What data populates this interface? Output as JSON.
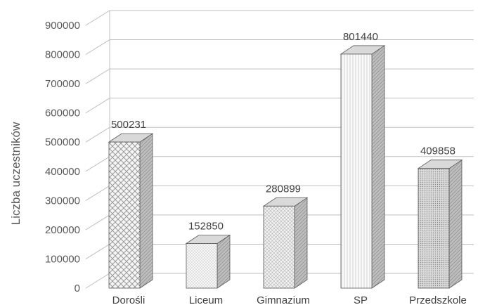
{
  "chart_data": {
    "type": "bar",
    "style": "3d-column",
    "title": "",
    "xlabel": "",
    "ylabel": "Liczba uczestników",
    "ylim": [
      0,
      900000
    ],
    "yticks": [
      "0",
      "100000",
      "200000",
      "300000",
      "400000",
      "500000",
      "600000",
      "700000",
      "800000",
      "900000"
    ],
    "grid": true,
    "legend": "none",
    "categories": [
      "Dorośli",
      "Liceum",
      "Gimnazium",
      "SP",
      "Przedszkole"
    ],
    "values": [
      500231,
      152850,
      280899,
      801440,
      409858
    ],
    "data_labels": [
      "500231",
      "152850",
      "280899",
      "801440",
      "409858"
    ],
    "colors": {
      "gridline": "#bfbfbf",
      "bar_front": "#f2f2f2",
      "bar_side": "#bdbdbd",
      "bar_top": "#d9d9d9",
      "bar_edge": "#595959"
    }
  }
}
